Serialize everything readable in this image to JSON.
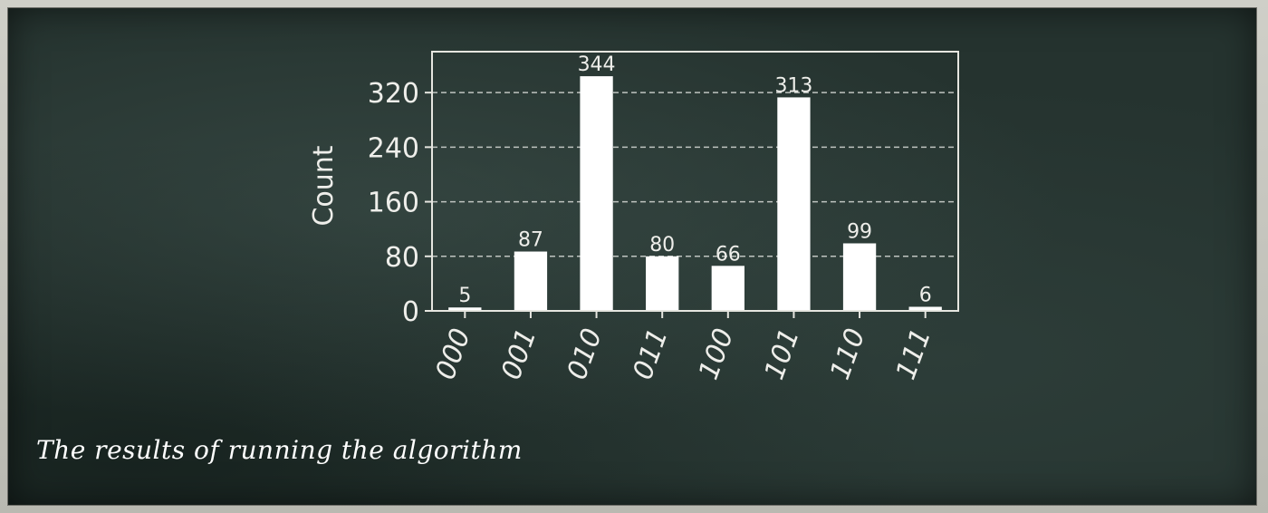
{
  "caption": "The results of running the algorithm",
  "chart_data": {
    "type": "bar",
    "categories": [
      "000",
      "001",
      "010",
      "011",
      "100",
      "101",
      "110",
      "111"
    ],
    "values": [
      5,
      87,
      344,
      80,
      66,
      313,
      99,
      6
    ],
    "data_labels": [
      "5",
      "87",
      "344",
      "80",
      "66",
      "313",
      "99",
      "6"
    ],
    "title": "",
    "xlabel": "",
    "ylabel": "Count",
    "ylim": [
      0,
      380
    ],
    "yticks": [
      0,
      80,
      160,
      240,
      320
    ],
    "grid": "horizontal dashed",
    "colors": {
      "bar": "#ffffff",
      "axis": "#e6e6e0",
      "grid": "#bfc4c0",
      "text": "#eeeeea"
    }
  }
}
